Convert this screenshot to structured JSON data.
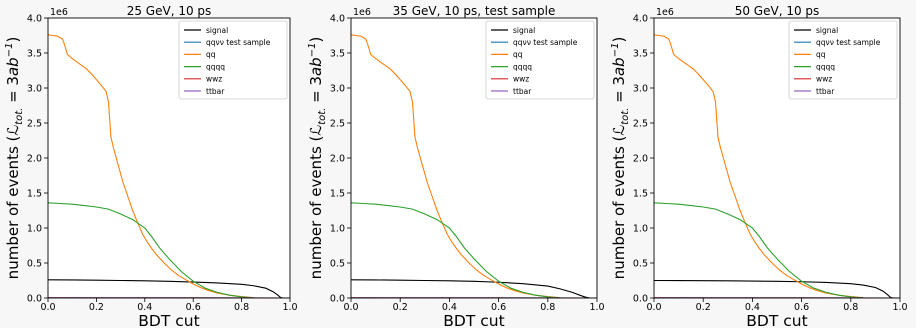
{
  "chart_data": [
    {
      "type": "line",
      "title": "25 GeV, 10 ps",
      "xlabel": "BDT cut",
      "ylabel": "number of events ($\\mathcal{L}_{tot.}$ = $3ab^{-1}$)",
      "ylabel_parts": {
        "pre": "number of events (",
        "L": "ℒ",
        "Lsub": "tot.",
        "mid": " = 3",
        "ab": "ab",
        "sup": "−1",
        "post": ")"
      },
      "multiplier": "1e6",
      "xlim": [
        0.0,
        1.0
      ],
      "ylim": [
        0.0,
        4000000.0
      ],
      "x_ticks": [
        "0.0",
        "0.2",
        "0.4",
        "0.6",
        "0.8",
        "1.0"
      ],
      "y_ticks": [
        "0.0",
        "0.5",
        "1.0",
        "1.5",
        "2.0",
        "2.5",
        "3.0",
        "3.5",
        "4.0"
      ],
      "grid": false,
      "legend_position": "top-right",
      "series": [
        {
          "name": "signal",
          "color": "#000000",
          "x": [
            0,
            0.1,
            0.2,
            0.3,
            0.4,
            0.5,
            0.6,
            0.7,
            0.8,
            0.85,
            0.9,
            0.93,
            0.95,
            0.96,
            0.97
          ],
          "y": [
            260000,
            258000,
            255000,
            250000,
            245000,
            238000,
            228000,
            215000,
            195000,
            175000,
            140000,
            90000,
            40000,
            10000,
            0
          ]
        },
        {
          "name": "qqνν test sample",
          "color": "#1f77b4",
          "x": [
            0,
            0.2,
            0.4,
            0.6,
            0.8,
            1.0
          ],
          "y": [
            2000,
            1500,
            1000,
            500,
            100,
            0
          ]
        },
        {
          "name": "qq",
          "color": "#ff7f0e",
          "x": [
            0,
            0.02,
            0.04,
            0.05,
            0.06,
            0.07,
            0.08,
            0.09,
            0.1,
            0.12,
            0.14,
            0.16,
            0.18,
            0.2,
            0.22,
            0.24,
            0.25,
            0.26,
            0.27,
            0.29,
            0.31,
            0.33,
            0.35,
            0.37,
            0.39,
            0.41,
            0.43,
            0.45,
            0.48,
            0.51,
            0.54,
            0.57,
            0.6,
            0.63,
            0.66,
            0.7,
            0.75,
            0.8,
            0.85
          ],
          "y": [
            3760000,
            3750000,
            3740000,
            3720000,
            3700000,
            3600000,
            3480000,
            3450000,
            3420000,
            3370000,
            3320000,
            3270000,
            3200000,
            3120000,
            3040000,
            2950000,
            2800000,
            2300000,
            2150000,
            1900000,
            1650000,
            1450000,
            1250000,
            1080000,
            920000,
            800000,
            700000,
            610000,
            500000,
            400000,
            320000,
            260000,
            200000,
            150000,
            110000,
            70000,
            40000,
            20000,
            5000
          ]
        },
        {
          "name": "qqqq",
          "color": "#2ca02c",
          "x": [
            0,
            0.05,
            0.1,
            0.15,
            0.2,
            0.25,
            0.3,
            0.35,
            0.4,
            0.43,
            0.46,
            0.5,
            0.55,
            0.6,
            0.65,
            0.7,
            0.75,
            0.8,
            0.85
          ],
          "y": [
            1360000,
            1350000,
            1340000,
            1320000,
            1300000,
            1270000,
            1200000,
            1120000,
            1000000,
            870000,
            720000,
            560000,
            380000,
            240000,
            140000,
            80000,
            40000,
            15000,
            3000
          ]
        },
        {
          "name": "wwz",
          "color": "#d62728",
          "x": [
            0,
            0.2,
            0.4,
            0.6,
            0.8,
            1.0
          ],
          "y": [
            4000,
            3500,
            3000,
            2000,
            800,
            0
          ]
        },
        {
          "name": "ttbar",
          "color": "#9467bd",
          "x": [
            0,
            0.2,
            0.4,
            0.6,
            0.8,
            1.0
          ],
          "y": [
            3000,
            2500,
            2000,
            1500,
            600,
            0
          ]
        }
      ]
    },
    {
      "type": "line",
      "title": "35 GeV, 10 ps, test sample",
      "xlabel": "BDT cut",
      "ylabel": "number of events ($\\mathcal{L}_{tot.}$ = $3ab^{-1}$)",
      "ylabel_parts": {
        "pre": "number of events (",
        "L": "ℒ",
        "Lsub": "tot.",
        "mid": " = 3",
        "ab": "ab",
        "sup": "−1",
        "post": ")"
      },
      "multiplier": "1e6",
      "xlim": [
        0.0,
        1.0
      ],
      "ylim": [
        0.0,
        4000000.0
      ],
      "x_ticks": [
        "0.0",
        "0.2",
        "0.4",
        "0.6",
        "0.8",
        "1.0"
      ],
      "y_ticks": [
        "0.0",
        "0.5",
        "1.0",
        "1.5",
        "2.0",
        "2.5",
        "3.0",
        "3.5",
        "4.0"
      ],
      "grid": false,
      "legend_position": "top-right",
      "series": [
        {
          "name": "signal",
          "color": "#000000",
          "x": [
            0,
            0.1,
            0.2,
            0.3,
            0.4,
            0.5,
            0.6,
            0.7,
            0.8,
            0.85,
            0.9,
            0.93,
            0.95,
            0.97
          ],
          "y": [
            260000,
            258000,
            255000,
            250000,
            245000,
            238000,
            225000,
            205000,
            170000,
            130000,
            80000,
            40000,
            15000,
            0
          ]
        },
        {
          "name": "qqνν test sample",
          "color": "#1f77b4",
          "x": [
            0,
            0.2,
            0.4,
            0.6,
            0.8,
            1.0
          ],
          "y": [
            2000,
            1500,
            1000,
            500,
            100,
            0
          ]
        },
        {
          "name": "qq",
          "color": "#ff7f0e",
          "x": [
            0,
            0.02,
            0.04,
            0.05,
            0.06,
            0.07,
            0.08,
            0.09,
            0.1,
            0.12,
            0.14,
            0.16,
            0.18,
            0.2,
            0.22,
            0.24,
            0.25,
            0.26,
            0.27,
            0.29,
            0.31,
            0.33,
            0.35,
            0.37,
            0.39,
            0.41,
            0.43,
            0.45,
            0.48,
            0.51,
            0.54,
            0.57,
            0.6,
            0.63,
            0.66,
            0.7,
            0.75,
            0.8,
            0.85
          ],
          "y": [
            3760000,
            3750000,
            3740000,
            3720000,
            3700000,
            3600000,
            3480000,
            3450000,
            3420000,
            3370000,
            3320000,
            3270000,
            3200000,
            3120000,
            3040000,
            2950000,
            2800000,
            2300000,
            2150000,
            1900000,
            1650000,
            1450000,
            1250000,
            1080000,
            920000,
            800000,
            700000,
            610000,
            500000,
            400000,
            320000,
            260000,
            200000,
            150000,
            110000,
            70000,
            40000,
            20000,
            5000
          ]
        },
        {
          "name": "qqqq",
          "color": "#2ca02c",
          "x": [
            0,
            0.05,
            0.1,
            0.15,
            0.2,
            0.25,
            0.3,
            0.35,
            0.4,
            0.43,
            0.46,
            0.5,
            0.55,
            0.6,
            0.65,
            0.7,
            0.75,
            0.8,
            0.85
          ],
          "y": [
            1360000,
            1350000,
            1340000,
            1320000,
            1300000,
            1270000,
            1200000,
            1120000,
            1000000,
            870000,
            720000,
            560000,
            380000,
            240000,
            140000,
            80000,
            40000,
            15000,
            3000
          ]
        },
        {
          "name": "wwz",
          "color": "#d62728",
          "x": [
            0,
            0.2,
            0.4,
            0.6,
            0.8,
            1.0
          ],
          "y": [
            4000,
            3500,
            3000,
            2000,
            800,
            0
          ]
        },
        {
          "name": "ttbar",
          "color": "#9467bd",
          "x": [
            0,
            0.2,
            0.4,
            0.6,
            0.8,
            1.0
          ],
          "y": [
            3000,
            2500,
            2000,
            1500,
            600,
            0
          ]
        }
      ]
    },
    {
      "type": "line",
      "title": "50 GeV, 10 ps",
      "xlabel": "BDT cut",
      "ylabel": "number of events ($\\mathcal{L}_{tot.}$ = $3ab^{-1}$)",
      "ylabel_parts": {
        "pre": "number of events (",
        "L": "ℒ",
        "Lsub": "tot.",
        "mid": " = 3",
        "ab": "ab",
        "sup": "−1",
        "post": ")"
      },
      "multiplier": "1e6",
      "xlim": [
        0.0,
        1.0
      ],
      "ylim": [
        0.0,
        4000000.0
      ],
      "x_ticks": [
        "0.0",
        "0.2",
        "0.4",
        "0.6",
        "0.8",
        "1.0"
      ],
      "y_ticks": [
        "0.0",
        "0.5",
        "1.0",
        "1.5",
        "2.0",
        "2.5",
        "3.0",
        "3.5",
        "4.0"
      ],
      "grid": false,
      "legend_position": "top-right",
      "series": [
        {
          "name": "signal",
          "color": "#000000",
          "x": [
            0,
            0.1,
            0.2,
            0.3,
            0.4,
            0.5,
            0.6,
            0.7,
            0.8,
            0.85,
            0.9,
            0.93,
            0.95,
            0.96,
            0.97
          ],
          "y": [
            250000,
            249000,
            247000,
            245000,
            242000,
            238000,
            232000,
            222000,
            205000,
            185000,
            150000,
            100000,
            45000,
            12000,
            0
          ]
        },
        {
          "name": "qqνν test sample",
          "color": "#1f77b4",
          "x": [
            0,
            0.2,
            0.4,
            0.6,
            0.8,
            1.0
          ],
          "y": [
            2000,
            1500,
            1000,
            500,
            100,
            0
          ]
        },
        {
          "name": "qq",
          "color": "#ff7f0e",
          "x": [
            0,
            0.02,
            0.04,
            0.05,
            0.06,
            0.07,
            0.08,
            0.09,
            0.1,
            0.12,
            0.14,
            0.16,
            0.18,
            0.2,
            0.22,
            0.24,
            0.25,
            0.26,
            0.27,
            0.29,
            0.31,
            0.33,
            0.35,
            0.37,
            0.39,
            0.41,
            0.43,
            0.45,
            0.48,
            0.51,
            0.54,
            0.57,
            0.6,
            0.63,
            0.66,
            0.7,
            0.75,
            0.8,
            0.85
          ],
          "y": [
            3760000,
            3750000,
            3740000,
            3720000,
            3700000,
            3600000,
            3480000,
            3450000,
            3420000,
            3370000,
            3320000,
            3270000,
            3200000,
            3120000,
            3040000,
            2950000,
            2800000,
            2300000,
            2150000,
            1900000,
            1650000,
            1450000,
            1250000,
            1080000,
            920000,
            800000,
            700000,
            610000,
            500000,
            400000,
            320000,
            260000,
            200000,
            150000,
            110000,
            70000,
            40000,
            20000,
            5000
          ]
        },
        {
          "name": "qqqq",
          "color": "#2ca02c",
          "x": [
            0,
            0.05,
            0.1,
            0.15,
            0.2,
            0.25,
            0.3,
            0.35,
            0.4,
            0.43,
            0.46,
            0.5,
            0.55,
            0.6,
            0.65,
            0.7,
            0.75,
            0.8,
            0.85
          ],
          "y": [
            1360000,
            1350000,
            1340000,
            1320000,
            1300000,
            1270000,
            1200000,
            1120000,
            1000000,
            870000,
            720000,
            560000,
            380000,
            240000,
            140000,
            80000,
            40000,
            15000,
            3000
          ]
        },
        {
          "name": "wwz",
          "color": "#d62728",
          "x": [
            0,
            0.2,
            0.4,
            0.6,
            0.8,
            1.0
          ],
          "y": [
            4000,
            3500,
            3000,
            2000,
            800,
            0
          ]
        },
        {
          "name": "ttbar",
          "color": "#9467bd",
          "x": [
            0,
            0.2,
            0.4,
            0.6,
            0.8,
            1.0
          ],
          "y": [
            3000,
            2500,
            2000,
            1500,
            600,
            0
          ]
        }
      ]
    }
  ]
}
